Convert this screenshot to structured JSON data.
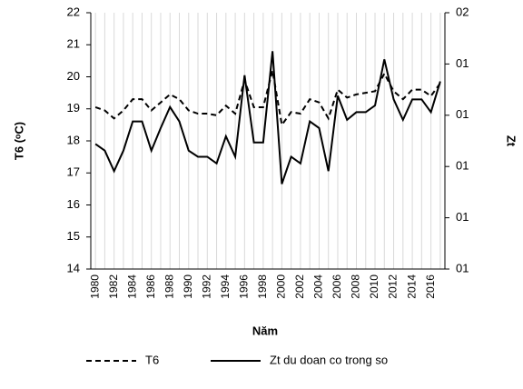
{
  "chart_data": {
    "type": "line",
    "xlabel": "Năm",
    "ylabel": "T6 (ᵒC)",
    "y2label": "Zt",
    "categories": [
      "1980",
      null,
      "1982",
      null,
      "1984",
      null,
      "1986",
      null,
      "1988",
      null,
      "1990",
      null,
      "1992",
      null,
      "1994",
      null,
      "1996",
      null,
      "1998",
      null,
      "2000",
      null,
      "2002",
      null,
      "2004",
      null,
      "2006",
      null,
      "2008",
      null,
      "2010",
      null,
      "2012",
      null,
      "2014",
      null,
      "2016",
      null
    ],
    "series": [
      {
        "name": "T6",
        "color": "#000000",
        "dash": true,
        "values": [
          19.05,
          18.95,
          18.7,
          18.95,
          19.3,
          19.3,
          18.95,
          19.2,
          19.45,
          19.3,
          18.95,
          18.85,
          18.85,
          18.8,
          19.1,
          18.85,
          19.9,
          19.05,
          19.05,
          20.2,
          18.5,
          18.9,
          18.85,
          19.3,
          19.2,
          18.7,
          19.6,
          19.35,
          19.45,
          19.5,
          19.55,
          20.1,
          19.55,
          19.3,
          19.6,
          19.6,
          19.4,
          19.8
        ]
      },
      {
        "name": "Zt du doan co trong so",
        "color": "#000000",
        "dash": false,
        "axis": "y2",
        "values": [
          1.244,
          1.231,
          1.191,
          1.231,
          1.288,
          1.288,
          1.231,
          1.275,
          1.316,
          1.288,
          1.231,
          1.219,
          1.219,
          1.206,
          1.259,
          1.219,
          1.378,
          1.247,
          1.247,
          1.425,
          1.166,
          1.219,
          1.206,
          1.288,
          1.275,
          1.191,
          1.338,
          1.291,
          1.306,
          1.306,
          1.319,
          1.409,
          1.331,
          1.291,
          1.331,
          1.331,
          1.306,
          1.366
        ]
      }
    ],
    "ylim": [
      14,
      22
    ],
    "yticks": [
      14,
      15,
      16,
      17,
      18,
      19,
      20,
      21,
      22
    ],
    "y2lim": [
      1.0,
      1.5
    ],
    "y2ticks": [
      {
        "value": 1.0,
        "label": "01"
      },
      {
        "value": 1.1,
        "label": "01"
      },
      {
        "value": 1.2,
        "label": "01"
      },
      {
        "value": 1.3,
        "label": "01"
      },
      {
        "value": 1.4,
        "label": "01"
      },
      {
        "value": 1.5,
        "label": "02"
      }
    ],
    "grid": true,
    "legend": "bottom"
  }
}
